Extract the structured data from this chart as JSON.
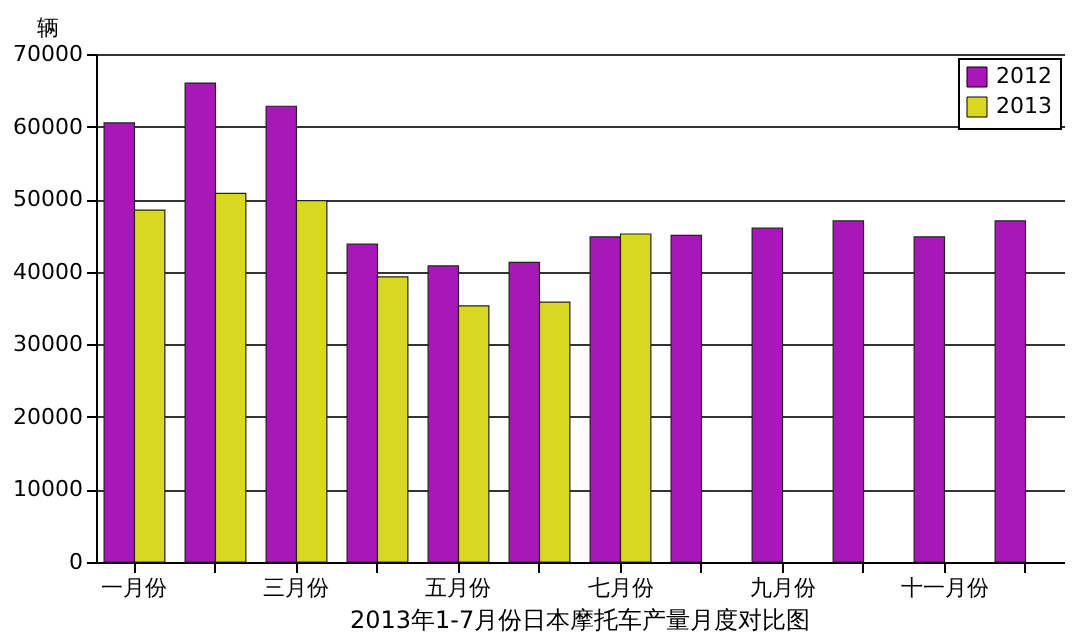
{
  "chart_data": {
    "type": "bar",
    "title": "2013年1-7月份日本摩托车产量月度对比图",
    "ylabel": "辆",
    "categories": [
      "一月份",
      null,
      "三月份",
      null,
      "五月份",
      null,
      "七月份",
      null,
      "九月份",
      null,
      "十一月份",
      null
    ],
    "series": [
      {
        "name": "2012",
        "color": "#a818b8",
        "values": [
          60500,
          66000,
          62800,
          43800,
          40800,
          41300,
          44800,
          45000,
          46000,
          47000,
          44800,
          47000
        ]
      },
      {
        "name": "2013",
        "color": "#d8d820",
        "values": [
          48500,
          50800,
          49800,
          39300,
          35300,
          35800,
          45200,
          null,
          null,
          null,
          null,
          null
        ]
      }
    ],
    "ylim": [
      0,
      70000
    ],
    "yticks": [
      0,
      10000,
      20000,
      30000,
      40000,
      50000,
      60000,
      70000
    ],
    "grid": "y",
    "legend": "top right"
  }
}
